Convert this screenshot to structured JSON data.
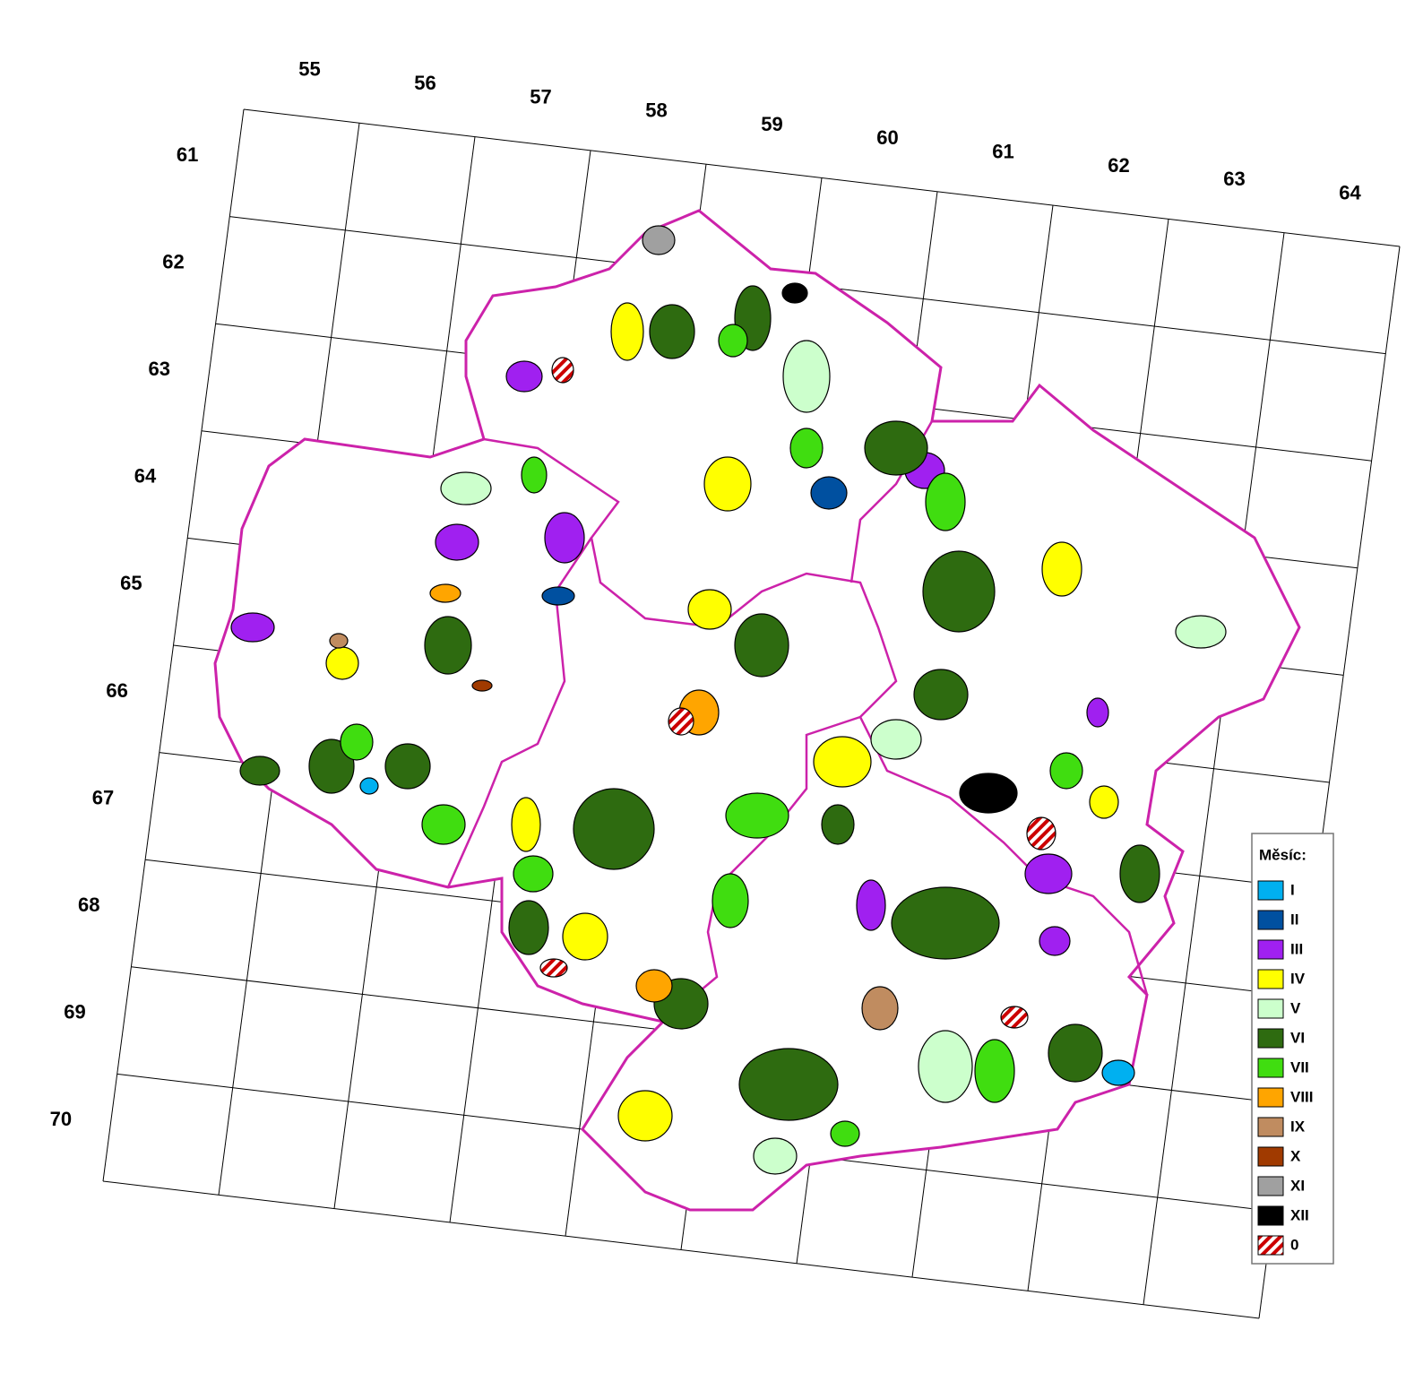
{
  "grid": {
    "columns": [
      55,
      56,
      57,
      58,
      59,
      60,
      61,
      62,
      63,
      64
    ],
    "rows": [
      61,
      62,
      63,
      64,
      65,
      66,
      67,
      68,
      69,
      70
    ]
  },
  "legend": {
    "title": "Měsíc:",
    "items": [
      {
        "label": "I",
        "color": "#00b0f0"
      },
      {
        "label": "II",
        "color": "#0050a0"
      },
      {
        "label": "III",
        "color": "#a020f0"
      },
      {
        "label": "IV",
        "color": "#ffff00"
      },
      {
        "label": "V",
        "color": "#ccffcc"
      },
      {
        "label": "VI",
        "color": "#2e6b10"
      },
      {
        "label": "VII",
        "color": "#40dd10"
      },
      {
        "label": "VIII",
        "color": "#ffa500"
      },
      {
        "label": "IX",
        "color": "#c08c60"
      },
      {
        "label": "X",
        "color": "#a03a00"
      },
      {
        "label": "XI",
        "color": "#a0a0a0"
      },
      {
        "label": "XII",
        "color": "#000000"
      },
      {
        "label": "0",
        "color": "#cc0000",
        "pattern": "hatch"
      }
    ]
  }
}
